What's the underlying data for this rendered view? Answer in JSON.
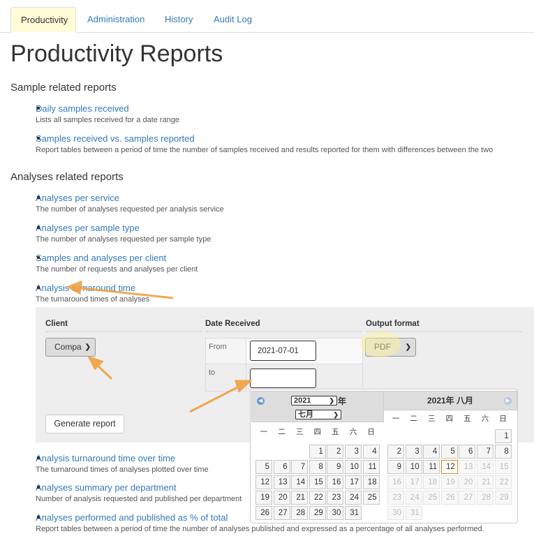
{
  "tabs": [
    {
      "label": "Productivity",
      "active": true
    },
    {
      "label": "Administration"
    },
    {
      "label": "History"
    },
    {
      "label": "Audit Log"
    }
  ],
  "title": "Productivity Reports",
  "sections": [
    {
      "heading": "Sample related reports",
      "items": [
        {
          "link": "Daily samples received",
          "desc": "Lists all samples received for a date range"
        },
        {
          "link": "Samples received vs. samples reported",
          "desc": "Report tables between a period of time the number of samples received and results reported for them with differences between the two"
        }
      ]
    },
    {
      "heading": "Analyses related reports",
      "items": [
        {
          "link": "Analyses per service",
          "desc": "The number of analyses requested per analysis service"
        },
        {
          "link": "Analyses per sample type",
          "desc": "The number of analyses requested per sample type"
        },
        {
          "link": "Samples and analyses per client",
          "desc": "The number of requests and analyses per client"
        },
        {
          "link": "Analysis turnaround time",
          "desc": "The turnaround times of analyses"
        },
        {
          "link": "Analysis turnaround time over time",
          "desc": "The turnaround times of analyses plotted over time"
        },
        {
          "link": "Analyses summary per department",
          "desc": "Number of analysis requested and published per department"
        },
        {
          "link": "Analyses performed and published as % of total",
          "desc": "Report tables between a period of time the number of analyses published and expressed as a percentage of all analyses performed."
        }
      ]
    }
  ],
  "form": {
    "client_header": "Client",
    "date_header": "Date Received",
    "output_header": "Output format",
    "client_value": "Compa",
    "from_label": "From",
    "from_value": "2021-07-01",
    "to_label": "to",
    "to_value": "",
    "output_value": "PDF",
    "generate_label": "Generate report"
  },
  "calendar": {
    "year_select": "2021",
    "year_suffix": "年",
    "month_select": "七月",
    "right_title": "2021年 八月",
    "weekdays": [
      "一",
      "二",
      "三",
      "四",
      "五",
      "六",
      "日"
    ],
    "months": [
      {
        "name": "七月",
        "first_weekday_index": 3,
        "days": 31
      },
      {
        "name": "八月",
        "first_weekday_index": 6,
        "days": 31
      }
    ],
    "today": "2021-08-12",
    "prev_icon": "circle-arrow-left-icon",
    "next_icon": "circle-arrow-right-icon"
  },
  "colors": {
    "link": "#337ab7",
    "annotation_arrow": "#f0a040",
    "highlight": "#fff6b0"
  }
}
